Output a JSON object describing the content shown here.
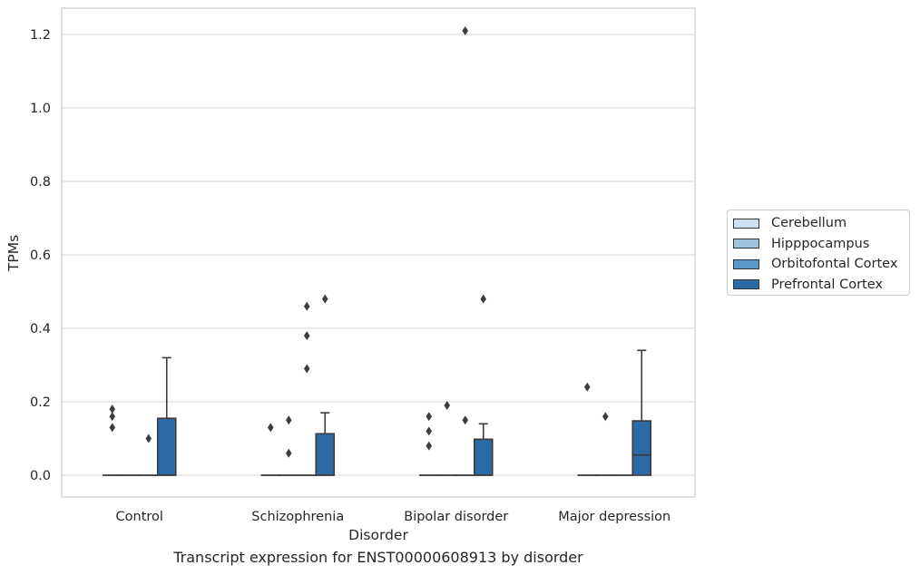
{
  "chart_data": {
    "type": "boxplot",
    "title": "",
    "caption": "Transcript expression for ENST00000608913 by disorder",
    "xlabel": "Disorder",
    "ylabel": "TPMs",
    "ylim": [
      -0.06,
      1.27
    ],
    "yticks": [
      0.0,
      0.2,
      0.4,
      0.6,
      0.8,
      1.0,
      1.2
    ],
    "ytick_labels": [
      "0.0",
      "0.2",
      "0.4",
      "0.6",
      "0.8",
      "1.0",
      "1.2"
    ],
    "grid": true,
    "legend_position": "right",
    "categories": [
      "Control",
      "Schizophrenia",
      "Bipolar disorder",
      "Major depression"
    ],
    "series": [
      {
        "name": "Cerebellum",
        "color": "#cfe0f1",
        "boxes": [
          {
            "q1": 0,
            "median": 0,
            "q3": 0,
            "whisker_low": 0,
            "whisker_high": 0,
            "outliers": [
              0.18,
              0.16,
              0.13
            ]
          },
          {
            "q1": 0,
            "median": 0,
            "q3": 0,
            "whisker_low": 0,
            "whisker_high": 0,
            "outliers": [
              0.13
            ]
          },
          {
            "q1": 0,
            "median": 0,
            "q3": 0,
            "whisker_low": 0,
            "whisker_high": 0,
            "outliers": [
              0.16,
              0.12,
              0.08
            ]
          },
          {
            "q1": 0,
            "median": 0,
            "q3": 0,
            "whisker_low": 0,
            "whisker_high": 0,
            "outliers": [
              0.24
            ]
          }
        ]
      },
      {
        "name": "Hipppocampus",
        "color": "#9cc4de",
        "boxes": [
          {
            "q1": 0,
            "median": 0,
            "q3": 0,
            "whisker_low": 0,
            "whisker_high": 0,
            "outliers": []
          },
          {
            "q1": 0,
            "median": 0,
            "q3": 0,
            "whisker_low": 0,
            "whisker_high": 0,
            "outliers": [
              0.15,
              0.06
            ]
          },
          {
            "q1": 0,
            "median": 0,
            "q3": 0,
            "whisker_low": 0,
            "whisker_high": 0,
            "outliers": [
              0.19
            ]
          },
          {
            "q1": 0,
            "median": 0,
            "q3": 0,
            "whisker_low": 0,
            "whisker_high": 0,
            "outliers": [
              0.16
            ]
          }
        ]
      },
      {
        "name": "Orbitofontal Cortex",
        "color": "#5b9ac8",
        "boxes": [
          {
            "q1": 0,
            "median": 0,
            "q3": 0,
            "whisker_low": 0,
            "whisker_high": 0,
            "outliers": [
              0.1
            ]
          },
          {
            "q1": 0,
            "median": 0,
            "q3": 0,
            "whisker_low": 0,
            "whisker_high": 0,
            "outliers": [
              0.46,
              0.38,
              0.29
            ]
          },
          {
            "q1": 0,
            "median": 0,
            "q3": 0,
            "whisker_low": 0,
            "whisker_high": 0,
            "outliers": [
              1.21,
              0.15
            ]
          },
          {
            "q1": 0,
            "median": 0,
            "q3": 0,
            "whisker_low": 0,
            "whisker_high": 0,
            "outliers": []
          }
        ]
      },
      {
        "name": "Prefrontal Cortex",
        "color": "#2c6aa6",
        "boxes": [
          {
            "q1": 0,
            "median": 0,
            "q3": 0.155,
            "whisker_low": 0,
            "whisker_high": 0.32,
            "outliers": []
          },
          {
            "q1": 0,
            "median": 0,
            "q3": 0.113,
            "whisker_low": 0,
            "whisker_high": 0.17,
            "outliers": [
              0.48
            ]
          },
          {
            "q1": 0,
            "median": 0,
            "q3": 0.098,
            "whisker_low": 0,
            "whisker_high": 0.14,
            "outliers": [
              0.48
            ]
          },
          {
            "q1": 0,
            "median": 0.055,
            "q3": 0.148,
            "whisker_low": 0,
            "whisker_high": 0.34,
            "outliers": []
          }
        ]
      }
    ]
  }
}
